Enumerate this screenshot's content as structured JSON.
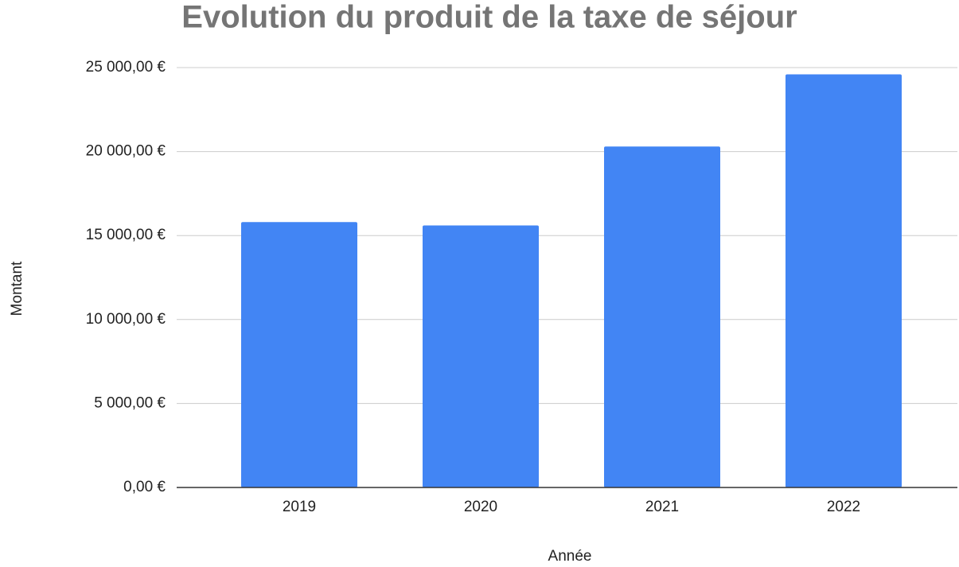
{
  "chart_data": {
    "type": "bar",
    "title": "Evolution du produit de la taxe de séjour",
    "x_label": "Année",
    "y_label": "Montant",
    "categories": [
      "2019",
      "2020",
      "2021",
      "2022"
    ],
    "values": [
      15800,
      15600,
      20300,
      24600
    ],
    "color": "#4285f4",
    "ylim": [
      0,
      25000
    ],
    "yticks": [
      {
        "value": 0,
        "label": "0,00 €"
      },
      {
        "value": 5000,
        "label": "5 000,00 €"
      },
      {
        "value": 10000,
        "label": "10 000,00 €"
      },
      {
        "value": 15000,
        "label": "15 000,00 €"
      },
      {
        "value": 20000,
        "label": "20 000,00 €"
      },
      {
        "value": 25000,
        "label": "25 000,00 €"
      }
    ],
    "grid": true
  }
}
